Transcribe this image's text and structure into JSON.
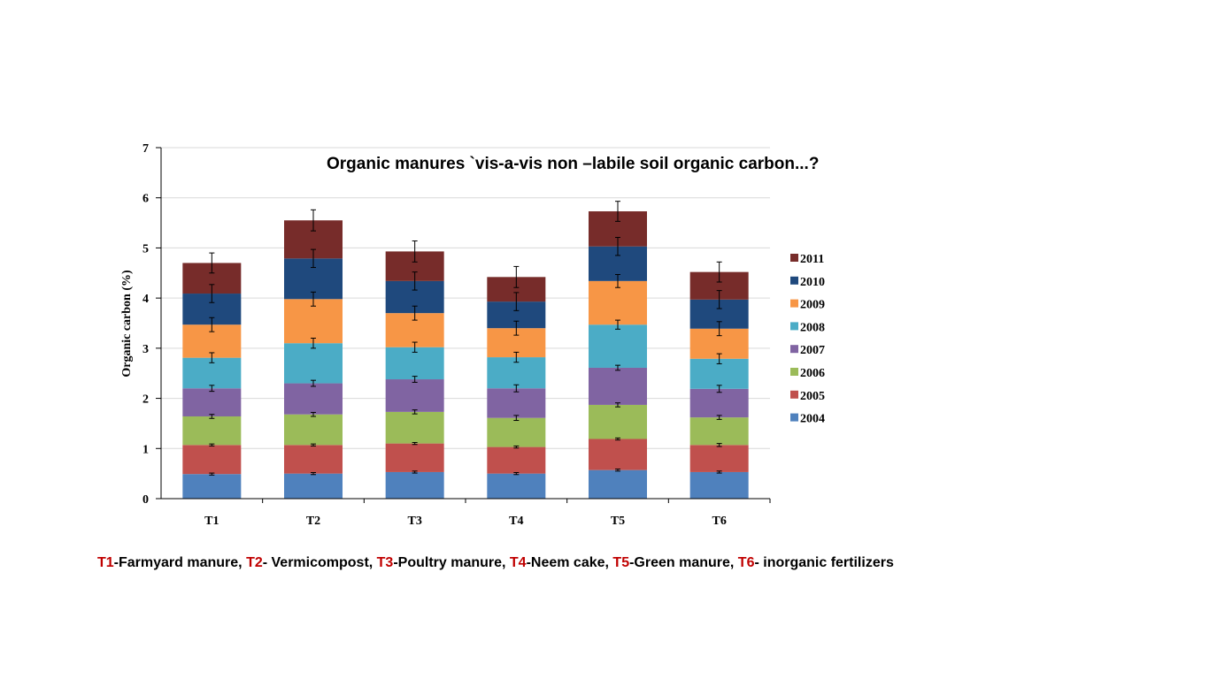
{
  "chart_data": {
    "type": "bar",
    "stacked": true,
    "title": "Organic manures `vis-a-vis  non –labile soil organic  carbon...?",
    "xlabel": "",
    "ylabel": "Organic carbon (%)",
    "ylim": [
      0,
      7
    ],
    "yticks": [
      0,
      1,
      2,
      3,
      4,
      5,
      6,
      7
    ],
    "grid": true,
    "legend_position": "right",
    "categories": [
      "T1",
      "T2",
      "T3",
      "T4",
      "T5",
      "T6"
    ],
    "series": [
      {
        "name": "2004",
        "color": "#4f81bd",
        "values": [
          0.49,
          0.5,
          0.53,
          0.5,
          0.57,
          0.53
        ],
        "errors": [
          0.02,
          0.02,
          0.02,
          0.02,
          0.02,
          0.02
        ]
      },
      {
        "name": "2005",
        "color": "#c0504d",
        "values": [
          0.58,
          0.57,
          0.57,
          0.53,
          0.62,
          0.54
        ],
        "errors": [
          0.02,
          0.02,
          0.02,
          0.02,
          0.02,
          0.03
        ]
      },
      {
        "name": "2006",
        "color": "#9bbb59",
        "values": [
          0.57,
          0.61,
          0.63,
          0.58,
          0.68,
          0.55
        ],
        "errors": [
          0.04,
          0.04,
          0.04,
          0.05,
          0.04,
          0.04
        ]
      },
      {
        "name": "2007",
        "color": "#8064a2",
        "values": [
          0.56,
          0.62,
          0.65,
          0.59,
          0.74,
          0.57
        ],
        "errors": [
          0.06,
          0.06,
          0.06,
          0.07,
          0.05,
          0.07
        ]
      },
      {
        "name": "2008",
        "color": "#4bacc6",
        "values": [
          0.61,
          0.8,
          0.64,
          0.62,
          0.86,
          0.6
        ],
        "errors": [
          0.1,
          0.1,
          0.1,
          0.1,
          0.09,
          0.1
        ]
      },
      {
        "name": "2009",
        "color": "#f79646",
        "values": [
          0.66,
          0.88,
          0.68,
          0.58,
          0.87,
          0.6
        ],
        "errors": [
          0.14,
          0.14,
          0.14,
          0.14,
          0.13,
          0.14
        ]
      },
      {
        "name": "2010",
        "color": "#1f497d",
        "values": [
          0.62,
          0.81,
          0.64,
          0.53,
          0.69,
          0.58
        ],
        "errors": [
          0.18,
          0.18,
          0.18,
          0.18,
          0.18,
          0.18
        ]
      },
      {
        "name": "2011",
        "color": "#772c2a",
        "values": [
          0.61,
          0.76,
          0.59,
          0.49,
          0.7,
          0.55
        ],
        "errors": [
          0.2,
          0.21,
          0.21,
          0.21,
          0.2,
          0.2
        ]
      }
    ]
  },
  "caption": [
    {
      "code": "T1",
      "text": "-Farmyard manure, "
    },
    {
      "code": "T2",
      "text": "- Vermicompost, "
    },
    {
      "code": "T3",
      "text": "-Poultry manure, "
    },
    {
      "code": "T4",
      "text": "-Neem cake, "
    },
    {
      "code": "T5",
      "text": "-Green manure, "
    },
    {
      "code": "T6",
      "text": "- inorganic fertilizers"
    }
  ],
  "colors": {
    "caption_code": "#c00000",
    "grid": "#d9d9d9"
  }
}
